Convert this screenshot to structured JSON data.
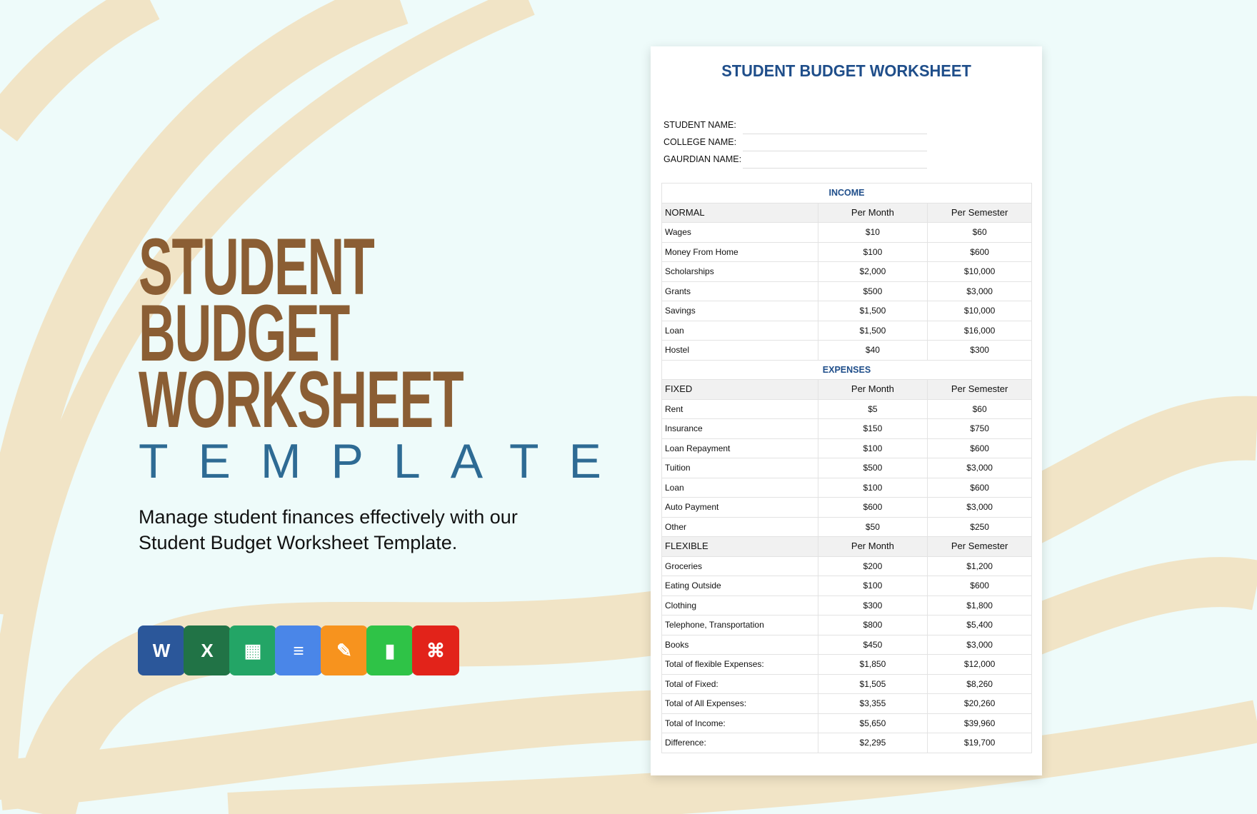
{
  "hero": {
    "line1": "STUDENT",
    "line2": "BUDGET",
    "line3": "WORKSHEET",
    "subtitle": "TEMPLATE",
    "description": "Manage student finances effectively with our Student Budget Worksheet Template."
  },
  "formats": [
    {
      "name": "word-icon",
      "letter": "W",
      "color": "#2b579a"
    },
    {
      "name": "excel-icon",
      "letter": "X",
      "color": "#217346"
    },
    {
      "name": "google-sheets-icon",
      "letter": "▦",
      "color": "#23a566"
    },
    {
      "name": "google-docs-icon",
      "letter": "≡",
      "color": "#4a86e8"
    },
    {
      "name": "pages-icon",
      "letter": "✎",
      "color": "#f7931e"
    },
    {
      "name": "numbers-icon",
      "letter": "▮",
      "color": "#2fc347"
    },
    {
      "name": "pdf-icon",
      "letter": "⌘",
      "color": "#e2231a"
    }
  ],
  "sheet": {
    "title": "STUDENT BUDGET WORKSHEET",
    "fields": [
      "STUDENT NAME:",
      "COLLEGE NAME:",
      "GAURDIAN NAME:"
    ],
    "income_label": "INCOME",
    "expenses_label": "EXPENSES",
    "col_month": "Per Month",
    "col_semester": "Per Semester",
    "normal_label": "NORMAL",
    "fixed_label": "FIXED",
    "flexible_label": "FLEXIBLE",
    "income": [
      [
        "Wages",
        "$10",
        "$60"
      ],
      [
        "Money From Home",
        "$100",
        "$600"
      ],
      [
        "Scholarships",
        "$2,000",
        "$10,000"
      ],
      [
        "Grants",
        "$500",
        "$3,000"
      ],
      [
        "Savings",
        "$1,500",
        "$10,000"
      ],
      [
        "Loan",
        "$1,500",
        "$16,000"
      ],
      [
        "Hostel",
        "$40",
        "$300"
      ]
    ],
    "fixed": [
      [
        "Rent",
        "$5",
        "$60"
      ],
      [
        "Insurance",
        "$150",
        "$750"
      ],
      [
        "Loan Repayment",
        "$100",
        "$600"
      ],
      [
        "Tuition",
        "$500",
        "$3,000"
      ],
      [
        "Loan",
        "$100",
        "$600"
      ],
      [
        "Auto Payment",
        "$600",
        "$3,000"
      ],
      [
        "Other",
        "$50",
        "$250"
      ]
    ],
    "flexible": [
      [
        "Groceries",
        "$200",
        "$1,200"
      ],
      [
        "Eating Outside",
        "$100",
        "$600"
      ],
      [
        "Clothing",
        "$300",
        "$1,800"
      ],
      [
        "Telephone, Transportation",
        "$800",
        "$5,400"
      ],
      [
        "Books",
        "$450",
        "$3,000"
      ],
      [
        "Total of flexible Expenses:",
        "$1,850",
        "$12,000"
      ],
      [
        "Total of Fixed:",
        "$1,505",
        "$8,260"
      ],
      [
        "Total of All Expenses:",
        "$3,355",
        "$20,260"
      ],
      [
        "Total of Income:",
        "$5,650",
        "$39,960"
      ],
      [
        "Difference:",
        "$2,295",
        "$19,700"
      ]
    ]
  },
  "colors": {
    "title_brown": "#8b5e34",
    "template_blue": "#2e6b94",
    "sheet_blue": "#1f4e8a",
    "swirl": "#f1e4c8"
  }
}
